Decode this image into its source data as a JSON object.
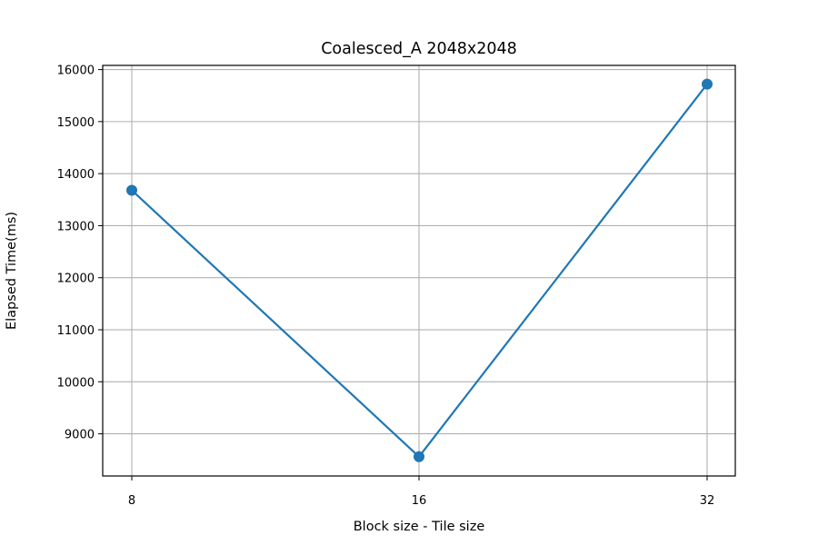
{
  "chart_data": {
    "type": "line",
    "title": "Coalesced_A 2048x2048",
    "xlabel": "Block size - Tile size",
    "ylabel": "Elapsed Time(ms)",
    "categories": [
      "8",
      "16",
      "32"
    ],
    "series": [
      {
        "values": [
          13680,
          8560,
          15720
        ],
        "marker": "circle",
        "color": "#1f77b4"
      }
    ],
    "ylim": [
      8190,
      16080
    ],
    "yticks": [
      9000,
      10000,
      11000,
      12000,
      13000,
      14000,
      15000,
      16000
    ],
    "ytick_labels": [
      "9000",
      "10000",
      "11000",
      "12000",
      "13000",
      "14000",
      "15000",
      "16000"
    ],
    "grid": true,
    "legend": "none",
    "colors": {
      "line": "#1f77b4",
      "grid": "#b0b0b0",
      "axes": "#000000"
    }
  }
}
